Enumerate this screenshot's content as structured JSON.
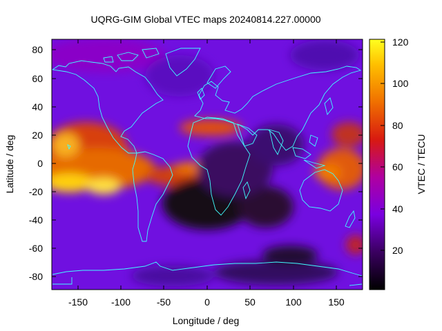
{
  "title": "UQRG-GIM Global VTEC maps 20240814.227.00000",
  "colors": {
    "coastline": "#40ffff",
    "background": "#ffffff",
    "frame": "#000000"
  },
  "chart_data": {
    "type": "heatmap",
    "title": "UQRG-GIM Global VTEC maps 20240814.227.00000",
    "xlabel": "Longitude / deg",
    "ylabel": "Latitude / deg",
    "xlim": [
      -180,
      180
    ],
    "ylim": [
      -90,
      90
    ],
    "x_ticks": [
      "-150",
      "-100",
      "-50",
      "0",
      "50",
      "100",
      "150"
    ],
    "y_ticks": [
      "80",
      "60",
      "40",
      "20",
      "0",
      "-20",
      "-40",
      "-60",
      "-80"
    ],
    "x_tick_values": [
      -150,
      -100,
      -50,
      0,
      50,
      100,
      150
    ],
    "y_tick_values": [
      80,
      60,
      40,
      20,
      0,
      -20,
      -40,
      -60,
      -80
    ],
    "colorbar": {
      "label": "VTEC / TECU",
      "range": [
        2,
        122
      ],
      "ticks": [
        "120",
        "100",
        "80",
        "60",
        "40",
        "20"
      ],
      "tick_values": [
        120,
        100,
        80,
        60,
        40,
        20
      ]
    },
    "grid": false,
    "approx_features": [
      {
        "lon": -165,
        "lat": -15,
        "vtec": 115
      },
      {
        "lon": -120,
        "lat": -15,
        "vtec": 110
      },
      {
        "lon": -150,
        "lat": 18,
        "vtec": 95
      },
      {
        "lon": 20,
        "lat": 25,
        "vtec": 80
      },
      {
        "lon": -5,
        "lat": -5,
        "vtec": 75
      },
      {
        "lon": 160,
        "lat": 0,
        "vtec": 82
      },
      {
        "lon": 10,
        "lat": -30,
        "vtec": 8
      },
      {
        "lon": 70,
        "lat": -25,
        "vtec": 15
      },
      {
        "lon": 110,
        "lat": -70,
        "vtec": 12
      },
      {
        "lon": 170,
        "lat": -60,
        "vtec": 50
      }
    ]
  }
}
